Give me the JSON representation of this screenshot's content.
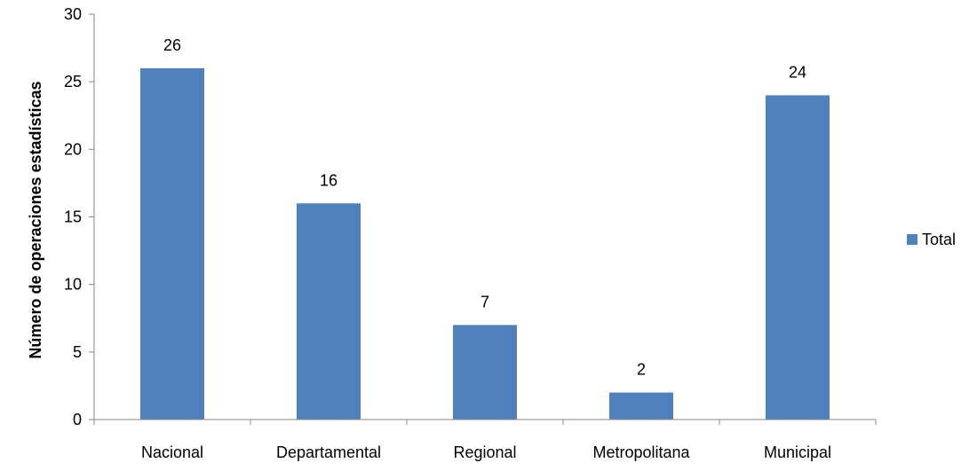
{
  "chart_data": {
    "type": "bar",
    "categories": [
      "Nacional",
      "Departamental",
      "Regional",
      "Metropolitana",
      "Municipal"
    ],
    "series": [
      {
        "name": "Total",
        "values": [
          26,
          16,
          7,
          2,
          24
        ]
      }
    ],
    "title": "",
    "xlabel": "",
    "ylabel": "Número de operaciones  estadísticas",
    "ylim": [
      0,
      30
    ],
    "yticks": [
      0,
      5,
      10,
      15,
      20,
      25,
      30
    ],
    "grid": false,
    "legend": "right",
    "colors": {
      "bar": "#4f81bd",
      "axis": "#868686"
    }
  }
}
